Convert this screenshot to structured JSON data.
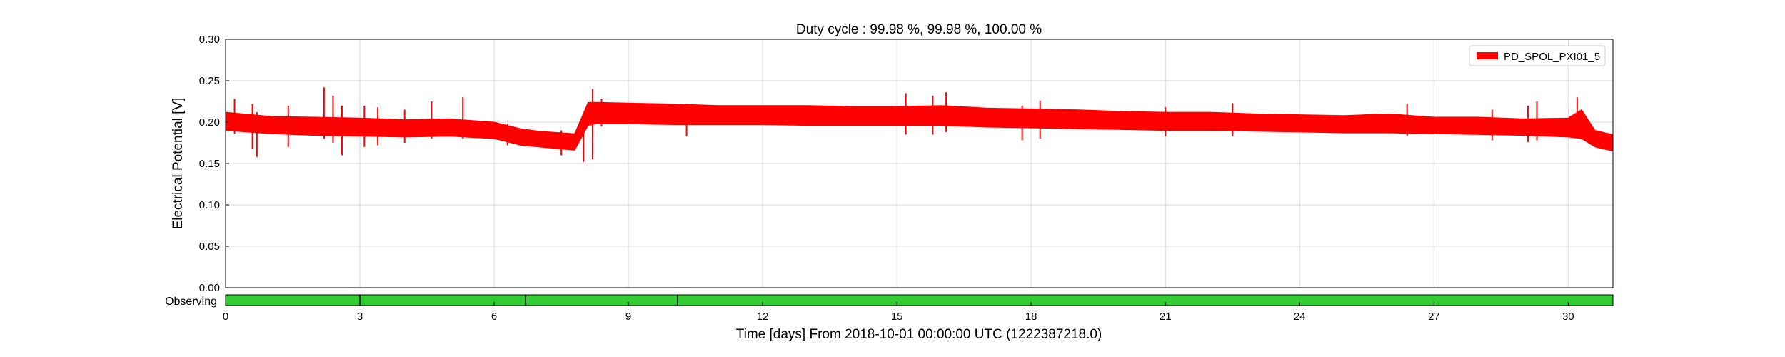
{
  "chart_data": {
    "type": "line",
    "title": "Duty cycle : 99.98 %, 99.98 %, 100.00 %",
    "xlabel": "Time [days] From 2018-10-01 00:00:00 UTC (1222387218.0)",
    "ylabel": "Electrical Potential [V]",
    "xlim": [
      0,
      31
    ],
    "ylim": [
      0,
      0.3
    ],
    "xticks": [
      0,
      3,
      6,
      9,
      12,
      15,
      18,
      21,
      24,
      27,
      30
    ],
    "yticks": [
      "0.00",
      "0.05",
      "0.10",
      "0.15",
      "0.20",
      "0.25",
      "0.30"
    ],
    "grid": true,
    "legend_position": "top-right",
    "series": [
      {
        "name": "PD_SPOL_PXI01_5",
        "color": "#ff0000",
        "envelope_x": [
          0,
          1,
          2,
          3,
          4,
          5,
          6,
          6.6,
          7,
          7.8,
          8.1,
          8.3,
          9,
          10,
          11,
          12,
          13,
          14,
          15,
          16,
          17,
          18,
          19,
          20,
          21,
          22,
          23,
          24,
          25,
          26,
          27,
          28,
          29,
          30,
          30.3,
          30.6,
          31
        ],
        "envelope_upper": [
          0.212,
          0.207,
          0.206,
          0.205,
          0.203,
          0.204,
          0.2,
          0.192,
          0.189,
          0.186,
          0.224,
          0.224,
          0.223,
          0.222,
          0.22,
          0.22,
          0.22,
          0.219,
          0.219,
          0.22,
          0.217,
          0.216,
          0.215,
          0.213,
          0.212,
          0.212,
          0.21,
          0.209,
          0.208,
          0.21,
          0.206,
          0.206,
          0.204,
          0.205,
          0.215,
          0.19,
          0.185
        ],
        "envelope_lower": [
          0.19,
          0.186,
          0.184,
          0.183,
          0.182,
          0.183,
          0.18,
          0.172,
          0.17,
          0.166,
          0.196,
          0.198,
          0.198,
          0.197,
          0.197,
          0.197,
          0.196,
          0.196,
          0.196,
          0.196,
          0.194,
          0.193,
          0.192,
          0.191,
          0.19,
          0.19,
          0.189,
          0.188,
          0.187,
          0.187,
          0.186,
          0.185,
          0.184,
          0.182,
          0.18,
          0.17,
          0.165
        ],
        "spikes": [
          {
            "x": 0.2,
            "max": 0.228,
            "min": 0.186
          },
          {
            "x": 0.6,
            "max": 0.222,
            "min": 0.168
          },
          {
            "x": 0.7,
            "max": 0.212,
            "min": 0.158
          },
          {
            "x": 1.4,
            "max": 0.22,
            "min": 0.17
          },
          {
            "x": 2.2,
            "max": 0.242,
            "min": 0.18
          },
          {
            "x": 2.4,
            "max": 0.232,
            "min": 0.175
          },
          {
            "x": 2.6,
            "max": 0.22,
            "min": 0.16
          },
          {
            "x": 3.1,
            "max": 0.22,
            "min": 0.17
          },
          {
            "x": 3.4,
            "max": 0.218,
            "min": 0.172
          },
          {
            "x": 4.0,
            "max": 0.215,
            "min": 0.175
          },
          {
            "x": 4.6,
            "max": 0.225,
            "min": 0.18
          },
          {
            "x": 5.3,
            "max": 0.23,
            "min": 0.18
          },
          {
            "x": 6.3,
            "max": 0.198,
            "min": 0.172
          },
          {
            "x": 7.5,
            "max": 0.19,
            "min": 0.16
          },
          {
            "x": 8.0,
            "max": 0.19,
            "min": 0.152
          },
          {
            "x": 8.2,
            "max": 0.24,
            "min": 0.155
          },
          {
            "x": 8.4,
            "max": 0.228,
            "min": 0.195
          },
          {
            "x": 10.3,
            "max": 0.215,
            "min": 0.183
          },
          {
            "x": 15.2,
            "max": 0.235,
            "min": 0.185
          },
          {
            "x": 15.8,
            "max": 0.232,
            "min": 0.185
          },
          {
            "x": 16.1,
            "max": 0.236,
            "min": 0.188
          },
          {
            "x": 17.8,
            "max": 0.22,
            "min": 0.178
          },
          {
            "x": 18.2,
            "max": 0.226,
            "min": 0.18
          },
          {
            "x": 21.0,
            "max": 0.218,
            "min": 0.183
          },
          {
            "x": 22.5,
            "max": 0.223,
            "min": 0.183
          },
          {
            "x": 26.4,
            "max": 0.222,
            "min": 0.183
          },
          {
            "x": 28.3,
            "max": 0.215,
            "min": 0.178
          },
          {
            "x": 29.1,
            "max": 0.22,
            "min": 0.176
          },
          {
            "x": 29.3,
            "max": 0.225,
            "min": 0.178
          },
          {
            "x": 30.2,
            "max": 0.23,
            "min": 0.185
          }
        ]
      }
    ]
  },
  "segments": {
    "label": "Observing",
    "color": "#33cc33",
    "range": [
      0,
      31
    ],
    "gaps_x": [
      3.0,
      6.7,
      10.1
    ]
  }
}
